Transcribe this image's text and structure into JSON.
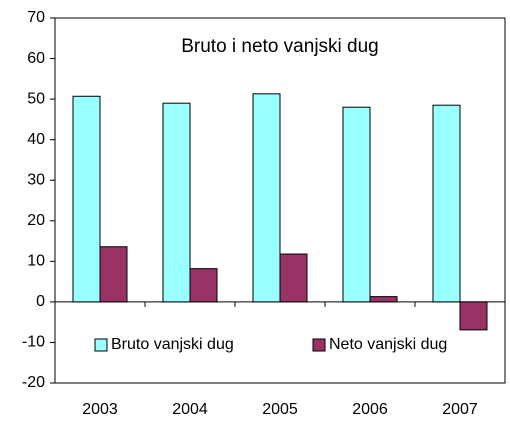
{
  "chart_data": {
    "type": "bar",
    "title": "Bruto i neto vanjski dug",
    "categories": [
      "2003",
      "2004",
      "2005",
      "2006",
      "2007"
    ],
    "series": [
      {
        "name": "Bruto vanjski dug",
        "color": "#99ffff",
        "values": [
          50.7,
          49,
          51.3,
          48,
          48.5
        ]
      },
      {
        "name": "Neto vanjski dug",
        "color": "#993366",
        "values": [
          13.6,
          8.2,
          11.8,
          1.3,
          -6.9
        ]
      }
    ],
    "ylim": [
      -20,
      70
    ],
    "yticks": [
      -20,
      -10,
      0,
      10,
      20,
      30,
      40,
      50,
      60,
      70
    ],
    "grid": false,
    "legend": "bottom"
  }
}
